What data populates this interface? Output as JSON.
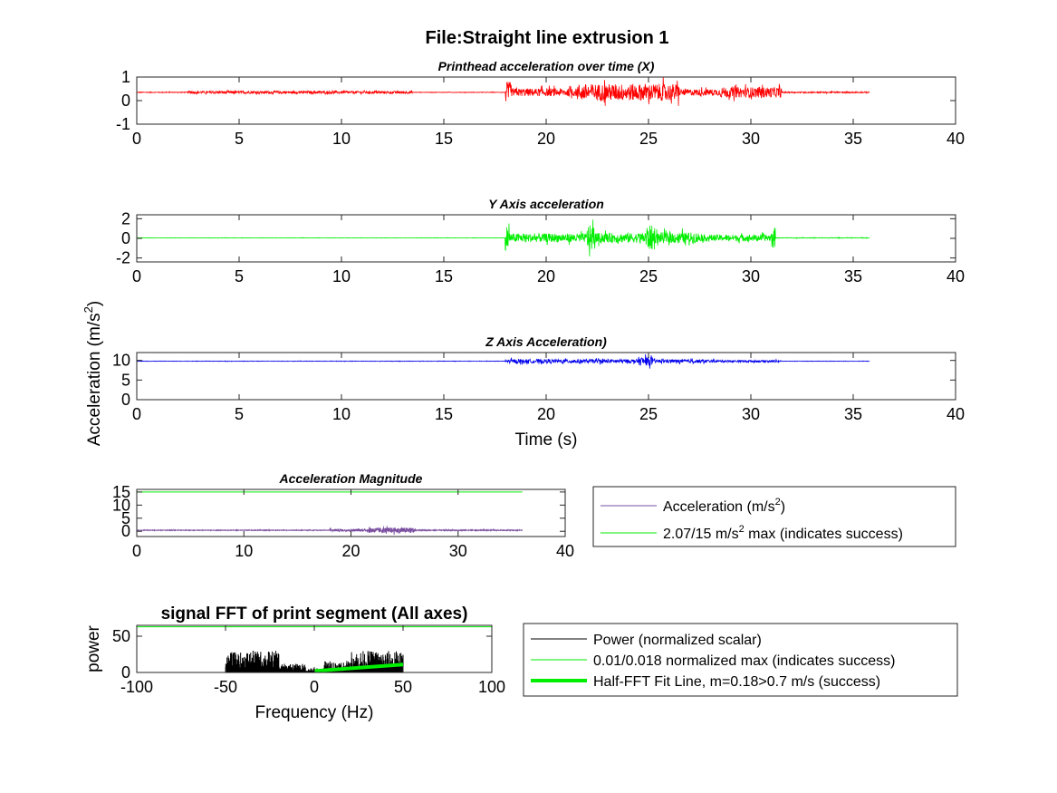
{
  "figure": {
    "title": "File:Straight line extrusion 1",
    "shared_ylabel_main": "Acceleration (m/s",
    "shared_ylabel_sup": "2",
    "shared_ylabel_end": ")"
  },
  "chart_data": [
    {
      "type": "line",
      "title": "Printhead acceleration over time (X)",
      "xlabel": "",
      "ylabel": "",
      "xlim": [
        0,
        40
      ],
      "ylim": [
        -1,
        1
      ],
      "xticks": [
        "0",
        "5",
        "10",
        "15",
        "20",
        "25",
        "30",
        "35",
        "40"
      ],
      "yticks": [
        "1",
        "0",
        "-1"
      ],
      "series": [
        {
          "color": "#ff0000",
          "baseline": 0.35,
          "x_range": [
            0,
            35.8
          ],
          "envelope": [
            {
              "t": [
                0,
                2.5
              ],
              "amp": 0.03
            },
            {
              "t": [
                2.5,
                2.7
              ],
              "amp": 0.12
            },
            {
              "t": [
                2.7,
                13.5
              ],
              "amp": 0.1
            },
            {
              "t": [
                13.5,
                18.0
              ],
              "amp": 0.02
            },
            {
              "t": [
                18.0,
                18.3
              ],
              "amp": 0.8
            },
            {
              "t": [
                18.3,
                21.5
              ],
              "amp": 0.3
            },
            {
              "t": [
                21.5,
                26.5
              ],
              "amp": 0.65
            },
            {
              "t": [
                26.5,
                28.5
              ],
              "amp": 0.25
            },
            {
              "t": [
                28.5,
                31.5
              ],
              "amp": 0.4
            },
            {
              "t": [
                31.5,
                35.8
              ],
              "amp": 0.05
            }
          ]
        }
      ]
    },
    {
      "type": "line",
      "title": "Y Axis acceleration",
      "xlabel": "",
      "ylabel": "",
      "xlim": [
        0,
        40
      ],
      "ylim": [
        -2.4,
        2.4
      ],
      "xticks": [
        "0",
        "5",
        "10",
        "15",
        "20",
        "25",
        "30",
        "35",
        "40"
      ],
      "yticks": [
        "2",
        "0",
        "-2"
      ],
      "series": [
        {
          "color": "#00ee00",
          "baseline": 0.05,
          "x_range": [
            0,
            35.8
          ],
          "envelope": [
            {
              "t": [
                0,
                18.0
              ],
              "amp": 0.03
            },
            {
              "t": [
                18.0,
                18.2
              ],
              "amp": 2.3
            },
            {
              "t": [
                18.2,
                22.0
              ],
              "amp": 0.8
            },
            {
              "t": [
                22.0,
                22.4
              ],
              "amp": 2.3
            },
            {
              "t": [
                22.4,
                24.8
              ],
              "amp": 0.9
            },
            {
              "t": [
                24.8,
                25.3
              ],
              "amp": 2.3
            },
            {
              "t": [
                25.3,
                27.5
              ],
              "amp": 1.0
            },
            {
              "t": [
                27.5,
                31.0
              ],
              "amp": 0.6
            },
            {
              "t": [
                31.0,
                31.2
              ],
              "amp": 1.9
            },
            {
              "t": [
                31.2,
                35.8
              ],
              "amp": 0.06
            }
          ]
        }
      ]
    },
    {
      "type": "line",
      "title": "Z Axis Acceleration)",
      "xlabel": "Time (s)",
      "ylabel": "",
      "xlim": [
        0,
        40
      ],
      "ylim": [
        0,
        12
      ],
      "xticks": [
        "0",
        "5",
        "10",
        "15",
        "20",
        "25",
        "30",
        "35",
        "40"
      ],
      "yticks": [
        "10",
        "5",
        "0"
      ],
      "series": [
        {
          "color": "#0000ee",
          "baseline": 9.8,
          "x_range": [
            0,
            35.8
          ],
          "envelope": [
            {
              "t": [
                0,
                18.0
              ],
              "amp": 0.1
            },
            {
              "t": [
                18.0,
                24.5
              ],
              "amp": 0.9
            },
            {
              "t": [
                24.5,
                25.2
              ],
              "amp": 2.0
            },
            {
              "t": [
                25.2,
                28.0
              ],
              "amp": 0.8
            },
            {
              "t": [
                28.0,
                31.5
              ],
              "amp": 0.5
            },
            {
              "t": [
                31.5,
                35.8
              ],
              "amp": 0.1
            }
          ]
        }
      ]
    },
    {
      "type": "line",
      "title": "Acceleration Magnitude",
      "xlabel": "",
      "ylabel": "",
      "xlim": [
        0,
        40
      ],
      "ylim": [
        -2,
        16
      ],
      "xticks": [
        "0",
        "10",
        "20",
        "30",
        "40"
      ],
      "yticks": [
        "15",
        "10",
        "5",
        "0"
      ],
      "legend": {
        "placement": "right",
        "entries": [
          {
            "label": "Acceleration (m/s",
            "sup": "2",
            "end": ")",
            "color": "#7a4fa0",
            "width": 1
          },
          {
            "label": "2.07/15 m/s",
            "sup": "2",
            "end": " max (indicates success)",
            "color": "#00ee00",
            "width": 1
          }
        ]
      },
      "series": [
        {
          "color": "#7a4fa0",
          "baseline": 0.4,
          "x_range": [
            0,
            36
          ],
          "envelope": [
            {
              "t": [
                0,
                18.0
              ],
              "amp": 0.2
            },
            {
              "t": [
                18.0,
                21.5
              ],
              "amp": 0.8
            },
            {
              "t": [
                21.5,
                26.0
              ],
              "amp": 1.8
            },
            {
              "t": [
                26.0,
                36.0
              ],
              "amp": 0.3
            }
          ]
        },
        {
          "color": "#00ee00",
          "constant": 15,
          "x_range": [
            0,
            36
          ]
        }
      ]
    },
    {
      "type": "line",
      "title": "signal FFT of print segment (All axes)",
      "xlabel": "Frequency (Hz)",
      "ylabel": "power",
      "xlim": [
        -100,
        100
      ],
      "ylim": [
        0,
        65
      ],
      "xticks": [
        "-100",
        "-50",
        "0",
        "50",
        "100"
      ],
      "yticks": [
        "50",
        "0"
      ],
      "legend": {
        "placement": "right",
        "entries": [
          {
            "label": "Power (normalized scalar)",
            "color": "#000000",
            "width": 1
          },
          {
            "label": "0.01/0.018 normalized max (indicates success)",
            "color": "#00ee00",
            "width": 1
          },
          {
            "label": "Half-FFT Fit Line, m=0.18>0.7 m/s (success)",
            "color": "#00ee00",
            "width": 4
          }
        ]
      },
      "series": [
        {
          "color": "#000000",
          "x_range": [
            -50,
            50
          ],
          "spectrum": [
            {
              "f": [
                -50,
                -40
              ],
              "amp": 28
            },
            {
              "f": [
                -40,
                -20
              ],
              "amp": 30
            },
            {
              "f": [
                -20,
                -5
              ],
              "amp": 12
            },
            {
              "f": [
                -5,
                5
              ],
              "amp": 6
            },
            {
              "f": [
                5,
                20
              ],
              "amp": 16
            },
            {
              "f": [
                20,
                50
              ],
              "amp": 30
            }
          ]
        },
        {
          "color": "#00ee00",
          "constant": 63,
          "x_range": [
            -100,
            100
          ]
        },
        {
          "color": "#00ee00",
          "fit_line": {
            "x": [
              0,
              50
            ],
            "y": [
              2,
              11
            ]
          }
        }
      ]
    }
  ]
}
